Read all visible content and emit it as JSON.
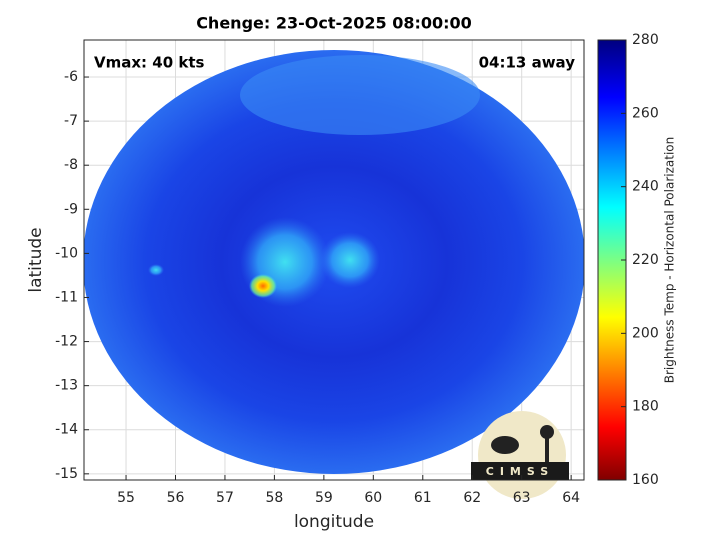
{
  "chart_data": {
    "type": "heatmap",
    "title": "Chenge: 23-Oct-2025 08:00:00",
    "annotations": [
      "Vmax: 40 kts",
      "04:13 away"
    ],
    "xlabel": "longitude",
    "ylabel": "latitude",
    "xlim": [
      54.15,
      64.26
    ],
    "ylim": [
      -15.14,
      -5.16
    ],
    "xticks": [
      55,
      56,
      57,
      58,
      59,
      60,
      61,
      62,
      63,
      64
    ],
    "yticks": [
      -15,
      -14,
      -13,
      -12,
      -11,
      -10,
      -9,
      -8,
      -7,
      -6
    ],
    "grid": true,
    "colorbar": {
      "label": "Brightness Temp - Horizontal Polarization",
      "lim": [
        160,
        280
      ],
      "ticks": [
        160,
        180,
        200,
        220,
        240,
        260,
        280
      ]
    },
    "logo": "CIMSS"
  }
}
